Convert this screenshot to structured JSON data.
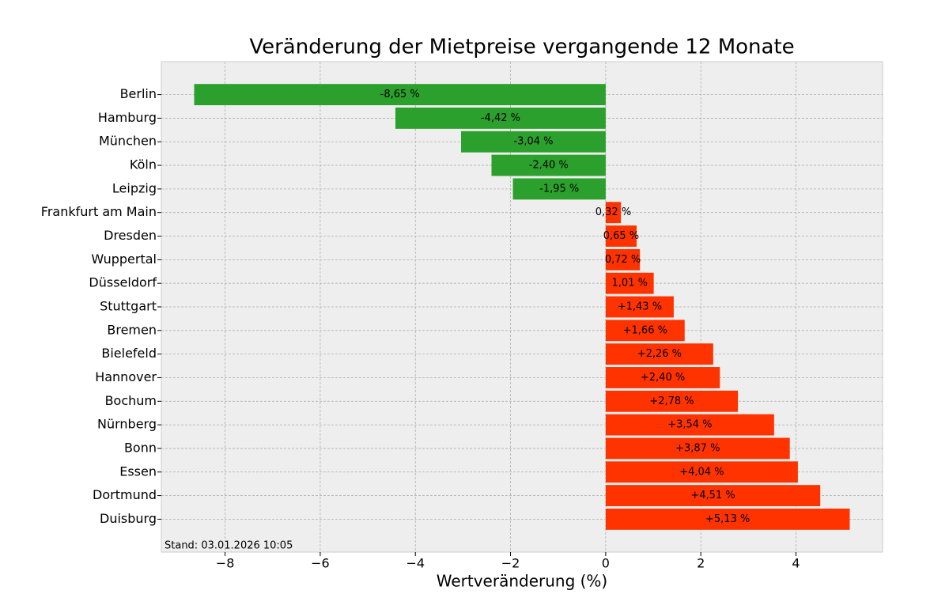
{
  "chart_data": {
    "type": "barh",
    "title": "Veränderung der Mietpreise vergangende 12 Monate",
    "xlabel": "Wertveränderung (%)",
    "annotation": "Stand: 03.01.2026 10:05",
    "categories": [
      "Berlin",
      "Hamburg",
      "München",
      "Köln",
      "Leipzig",
      "Frankfurt am Main",
      "Dresden",
      "Wuppertal",
      "Düsseldorf",
      "Stuttgart",
      "Bremen",
      "Bielefeld",
      "Hannover",
      "Bochum",
      "Nürnberg",
      "Bonn",
      "Essen",
      "Dortmund",
      "Duisburg"
    ],
    "values": [
      -8.65,
      -4.42,
      -3.04,
      -2.4,
      -1.95,
      0.32,
      0.65,
      0.72,
      1.01,
      1.43,
      1.66,
      2.26,
      2.4,
      2.78,
      3.54,
      3.87,
      4.04,
      4.51,
      5.13
    ],
    "value_labels": [
      "-8,65 %",
      "-4,42 %",
      "-3,04 %",
      "-2,40 %",
      "-1,95 %",
      "0,32 %",
      "0,65 %",
      "0,72 %",
      "1,01 %",
      "+1,43 %",
      "+1,66 %",
      "+2,26 %",
      "+2,40 %",
      "+2,78 %",
      "+3,54 %",
      "+3,87 %",
      "+4,04 %",
      "+4,51 %",
      "+5,13 %"
    ],
    "colors": [
      "#2ca02c",
      "#2ca02c",
      "#2ca02c",
      "#2ca02c",
      "#2ca02c",
      "#ff3300",
      "#ff3300",
      "#ff3300",
      "#ff3300",
      "#ff3300",
      "#ff3300",
      "#ff3300",
      "#ff3300",
      "#ff3300",
      "#ff3300",
      "#ff3300",
      "#ff3300",
      "#ff3300",
      "#ff3300"
    ],
    "xlim": [
      -9.34,
      5.82
    ],
    "xticks": [
      {
        "value": -8,
        "label": "−8"
      },
      {
        "value": -6,
        "label": "−6"
      },
      {
        "value": -4,
        "label": "−4"
      },
      {
        "value": -2,
        "label": "−2"
      },
      0,
      2,
      4
    ],
    "grid": true
  }
}
